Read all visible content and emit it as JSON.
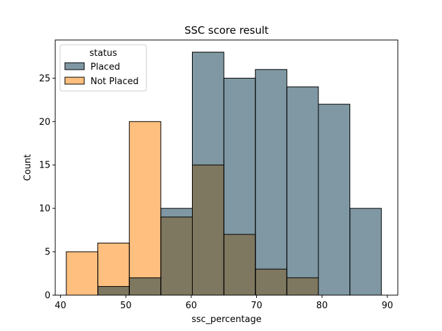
{
  "chart_data": {
    "type": "bar",
    "title": "SSC score result",
    "xlabel": "ssc_percentage",
    "ylabel": "Count",
    "xlim": [
      39.2,
      91.6
    ],
    "ylim": [
      0,
      29.4
    ],
    "xticks": [
      40,
      50,
      60,
      70,
      80,
      90
    ],
    "yticks": [
      0,
      5,
      10,
      15,
      20,
      25
    ],
    "bin_edges": [
      40.89,
      45.71,
      50.53,
      55.35,
      60.17,
      64.99,
      69.81,
      74.63,
      79.45,
      84.27,
      89.09
    ],
    "legend": {
      "title": "status",
      "placement": "upper-left"
    },
    "series": [
      {
        "name": "Placed",
        "color": "#4f6f80",
        "values": [
          0,
          1,
          2,
          10,
          28,
          25,
          26,
          24,
          22,
          10
        ]
      },
      {
        "name": "Not Placed",
        "color": "#ffa640",
        "values": [
          5,
          6,
          20,
          9,
          15,
          7,
          3,
          2,
          0,
          0
        ]
      }
    ],
    "overlap_color_placed": "#7f98a3",
    "overlap_color_notplaced": "#ffbf7f",
    "overlap_color_both": "#7f7860"
  }
}
